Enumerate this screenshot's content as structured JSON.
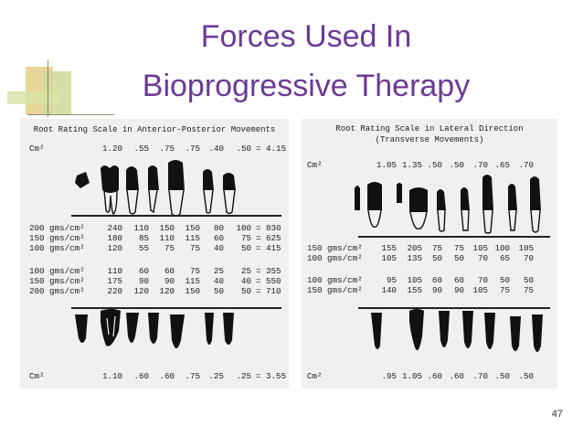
{
  "slide": {
    "title_line1": "Forces Used In",
    "title_line2": "Bioprogressive Therapy",
    "page_number": "47"
  },
  "left_panel": {
    "heading": "Root Rating Scale in Anterior-Posterior Movements",
    "top": {
      "label": "Cm²",
      "values": [
        "1.20",
        ".55",
        ".75",
        ".75",
        ".40",
        ".50"
      ],
      "total": "= 4.15"
    },
    "rows": [
      {
        "label": "200 gms/cm²",
        "values": [
          "240",
          "110",
          "150",
          "150",
          "80",
          "100"
        ],
        "total": "= 830"
      },
      {
        "label": "150 gms/cm²",
        "values": [
          "180",
          "85",
          "110",
          "115",
          "60",
          "75"
        ],
        "total": "= 625"
      },
      {
        "label": "100 gms/cm²",
        "values": [
          "120",
          "55",
          "75",
          "75",
          "40",
          "50"
        ],
        "total": "= 415"
      },
      {
        "label": "100 gms/cm²",
        "values": [
          "110",
          "60",
          "60",
          "75",
          "25",
          "25"
        ],
        "total": "= 355"
      },
      {
        "label": "150 gms/cm²",
        "values": [
          "175",
          "90",
          "90",
          "115",
          "40",
          "40"
        ],
        "total": "= 550"
      },
      {
        "label": "200 gms/cm²",
        "values": [
          "220",
          "120",
          "120",
          "150",
          "50",
          "50"
        ],
        "total": "= 710"
      }
    ],
    "bottom": {
      "label": "Cm²",
      "values": [
        "1.10",
        ".60",
        ".60",
        ".75",
        ".25",
        ".25"
      ],
      "total": "= 3.55"
    }
  },
  "right_panel": {
    "heading_line1": "Root Rating Scale in Lateral Direction",
    "heading_line2": "(Transverse Movements)",
    "top": {
      "label": "Cm²",
      "values": [
        "1.05",
        "1.35",
        ".50",
        ".50",
        ".70",
        ".65",
        ".70"
      ]
    },
    "rows": [
      {
        "label": "150 gms/cm²",
        "values": [
          "155",
          "205",
          "75",
          "75",
          "105",
          "100",
          "105"
        ]
      },
      {
        "label": "100 gms/cm²",
        "values": [
          "105",
          "135",
          "50",
          "50",
          "70",
          "65",
          "70"
        ]
      },
      {
        "label": "100 gms/cm²",
        "values": [
          "95",
          "105",
          "60",
          "60",
          "70",
          "50",
          "50"
        ]
      },
      {
        "label": "150 gms/cm²",
        "values": [
          "140",
          "155",
          "90",
          "90",
          "105",
          "75",
          "75"
        ]
      }
    ],
    "bottom": {
      "label": "Cm²",
      "values": [
        ".95",
        "1.05",
        ".60",
        ".60",
        ".70",
        ".50",
        ".50"
      ]
    }
  }
}
